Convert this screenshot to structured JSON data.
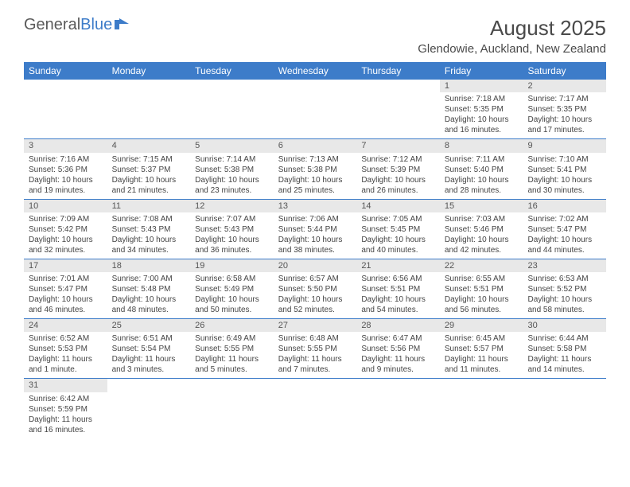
{
  "logo": {
    "general": "General",
    "blue": "Blue"
  },
  "title": "August 2025",
  "location": "Glendowie, Auckland, New Zealand",
  "colors": {
    "header_bg": "#3d7cc9",
    "header_text": "#ffffff",
    "daynum_bg": "#e8e8e8",
    "row_border": "#3d7cc9",
    "text": "#444444",
    "title_text": "#4a4a4a"
  },
  "weekdays": [
    "Sunday",
    "Monday",
    "Tuesday",
    "Wednesday",
    "Thursday",
    "Friday",
    "Saturday"
  ],
  "weeks": [
    [
      {
        "day": "",
        "lines": []
      },
      {
        "day": "",
        "lines": []
      },
      {
        "day": "",
        "lines": []
      },
      {
        "day": "",
        "lines": []
      },
      {
        "day": "",
        "lines": []
      },
      {
        "day": "1",
        "lines": [
          "Sunrise: 7:18 AM",
          "Sunset: 5:35 PM",
          "Daylight: 10 hours and 16 minutes."
        ]
      },
      {
        "day": "2",
        "lines": [
          "Sunrise: 7:17 AM",
          "Sunset: 5:35 PM",
          "Daylight: 10 hours and 17 minutes."
        ]
      }
    ],
    [
      {
        "day": "3",
        "lines": [
          "Sunrise: 7:16 AM",
          "Sunset: 5:36 PM",
          "Daylight: 10 hours and 19 minutes."
        ]
      },
      {
        "day": "4",
        "lines": [
          "Sunrise: 7:15 AM",
          "Sunset: 5:37 PM",
          "Daylight: 10 hours and 21 minutes."
        ]
      },
      {
        "day": "5",
        "lines": [
          "Sunrise: 7:14 AM",
          "Sunset: 5:38 PM",
          "Daylight: 10 hours and 23 minutes."
        ]
      },
      {
        "day": "6",
        "lines": [
          "Sunrise: 7:13 AM",
          "Sunset: 5:38 PM",
          "Daylight: 10 hours and 25 minutes."
        ]
      },
      {
        "day": "7",
        "lines": [
          "Sunrise: 7:12 AM",
          "Sunset: 5:39 PM",
          "Daylight: 10 hours and 26 minutes."
        ]
      },
      {
        "day": "8",
        "lines": [
          "Sunrise: 7:11 AM",
          "Sunset: 5:40 PM",
          "Daylight: 10 hours and 28 minutes."
        ]
      },
      {
        "day": "9",
        "lines": [
          "Sunrise: 7:10 AM",
          "Sunset: 5:41 PM",
          "Daylight: 10 hours and 30 minutes."
        ]
      }
    ],
    [
      {
        "day": "10",
        "lines": [
          "Sunrise: 7:09 AM",
          "Sunset: 5:42 PM",
          "Daylight: 10 hours and 32 minutes."
        ]
      },
      {
        "day": "11",
        "lines": [
          "Sunrise: 7:08 AM",
          "Sunset: 5:43 PM",
          "Daylight: 10 hours and 34 minutes."
        ]
      },
      {
        "day": "12",
        "lines": [
          "Sunrise: 7:07 AM",
          "Sunset: 5:43 PM",
          "Daylight: 10 hours and 36 minutes."
        ]
      },
      {
        "day": "13",
        "lines": [
          "Sunrise: 7:06 AM",
          "Sunset: 5:44 PM",
          "Daylight: 10 hours and 38 minutes."
        ]
      },
      {
        "day": "14",
        "lines": [
          "Sunrise: 7:05 AM",
          "Sunset: 5:45 PM",
          "Daylight: 10 hours and 40 minutes."
        ]
      },
      {
        "day": "15",
        "lines": [
          "Sunrise: 7:03 AM",
          "Sunset: 5:46 PM",
          "Daylight: 10 hours and 42 minutes."
        ]
      },
      {
        "day": "16",
        "lines": [
          "Sunrise: 7:02 AM",
          "Sunset: 5:47 PM",
          "Daylight: 10 hours and 44 minutes."
        ]
      }
    ],
    [
      {
        "day": "17",
        "lines": [
          "Sunrise: 7:01 AM",
          "Sunset: 5:47 PM",
          "Daylight: 10 hours and 46 minutes."
        ]
      },
      {
        "day": "18",
        "lines": [
          "Sunrise: 7:00 AM",
          "Sunset: 5:48 PM",
          "Daylight: 10 hours and 48 minutes."
        ]
      },
      {
        "day": "19",
        "lines": [
          "Sunrise: 6:58 AM",
          "Sunset: 5:49 PM",
          "Daylight: 10 hours and 50 minutes."
        ]
      },
      {
        "day": "20",
        "lines": [
          "Sunrise: 6:57 AM",
          "Sunset: 5:50 PM",
          "Daylight: 10 hours and 52 minutes."
        ]
      },
      {
        "day": "21",
        "lines": [
          "Sunrise: 6:56 AM",
          "Sunset: 5:51 PM",
          "Daylight: 10 hours and 54 minutes."
        ]
      },
      {
        "day": "22",
        "lines": [
          "Sunrise: 6:55 AM",
          "Sunset: 5:51 PM",
          "Daylight: 10 hours and 56 minutes."
        ]
      },
      {
        "day": "23",
        "lines": [
          "Sunrise: 6:53 AM",
          "Sunset: 5:52 PM",
          "Daylight: 10 hours and 58 minutes."
        ]
      }
    ],
    [
      {
        "day": "24",
        "lines": [
          "Sunrise: 6:52 AM",
          "Sunset: 5:53 PM",
          "Daylight: 11 hours and 1 minute."
        ]
      },
      {
        "day": "25",
        "lines": [
          "Sunrise: 6:51 AM",
          "Sunset: 5:54 PM",
          "Daylight: 11 hours and 3 minutes."
        ]
      },
      {
        "day": "26",
        "lines": [
          "Sunrise: 6:49 AM",
          "Sunset: 5:55 PM",
          "Daylight: 11 hours and 5 minutes."
        ]
      },
      {
        "day": "27",
        "lines": [
          "Sunrise: 6:48 AM",
          "Sunset: 5:55 PM",
          "Daylight: 11 hours and 7 minutes."
        ]
      },
      {
        "day": "28",
        "lines": [
          "Sunrise: 6:47 AM",
          "Sunset: 5:56 PM",
          "Daylight: 11 hours and 9 minutes."
        ]
      },
      {
        "day": "29",
        "lines": [
          "Sunrise: 6:45 AM",
          "Sunset: 5:57 PM",
          "Daylight: 11 hours and 11 minutes."
        ]
      },
      {
        "day": "30",
        "lines": [
          "Sunrise: 6:44 AM",
          "Sunset: 5:58 PM",
          "Daylight: 11 hours and 14 minutes."
        ]
      }
    ],
    [
      {
        "day": "31",
        "lines": [
          "Sunrise: 6:42 AM",
          "Sunset: 5:59 PM",
          "Daylight: 11 hours and 16 minutes."
        ]
      },
      {
        "day": "",
        "lines": []
      },
      {
        "day": "",
        "lines": []
      },
      {
        "day": "",
        "lines": []
      },
      {
        "day": "",
        "lines": []
      },
      {
        "day": "",
        "lines": []
      },
      {
        "day": "",
        "lines": []
      }
    ]
  ]
}
